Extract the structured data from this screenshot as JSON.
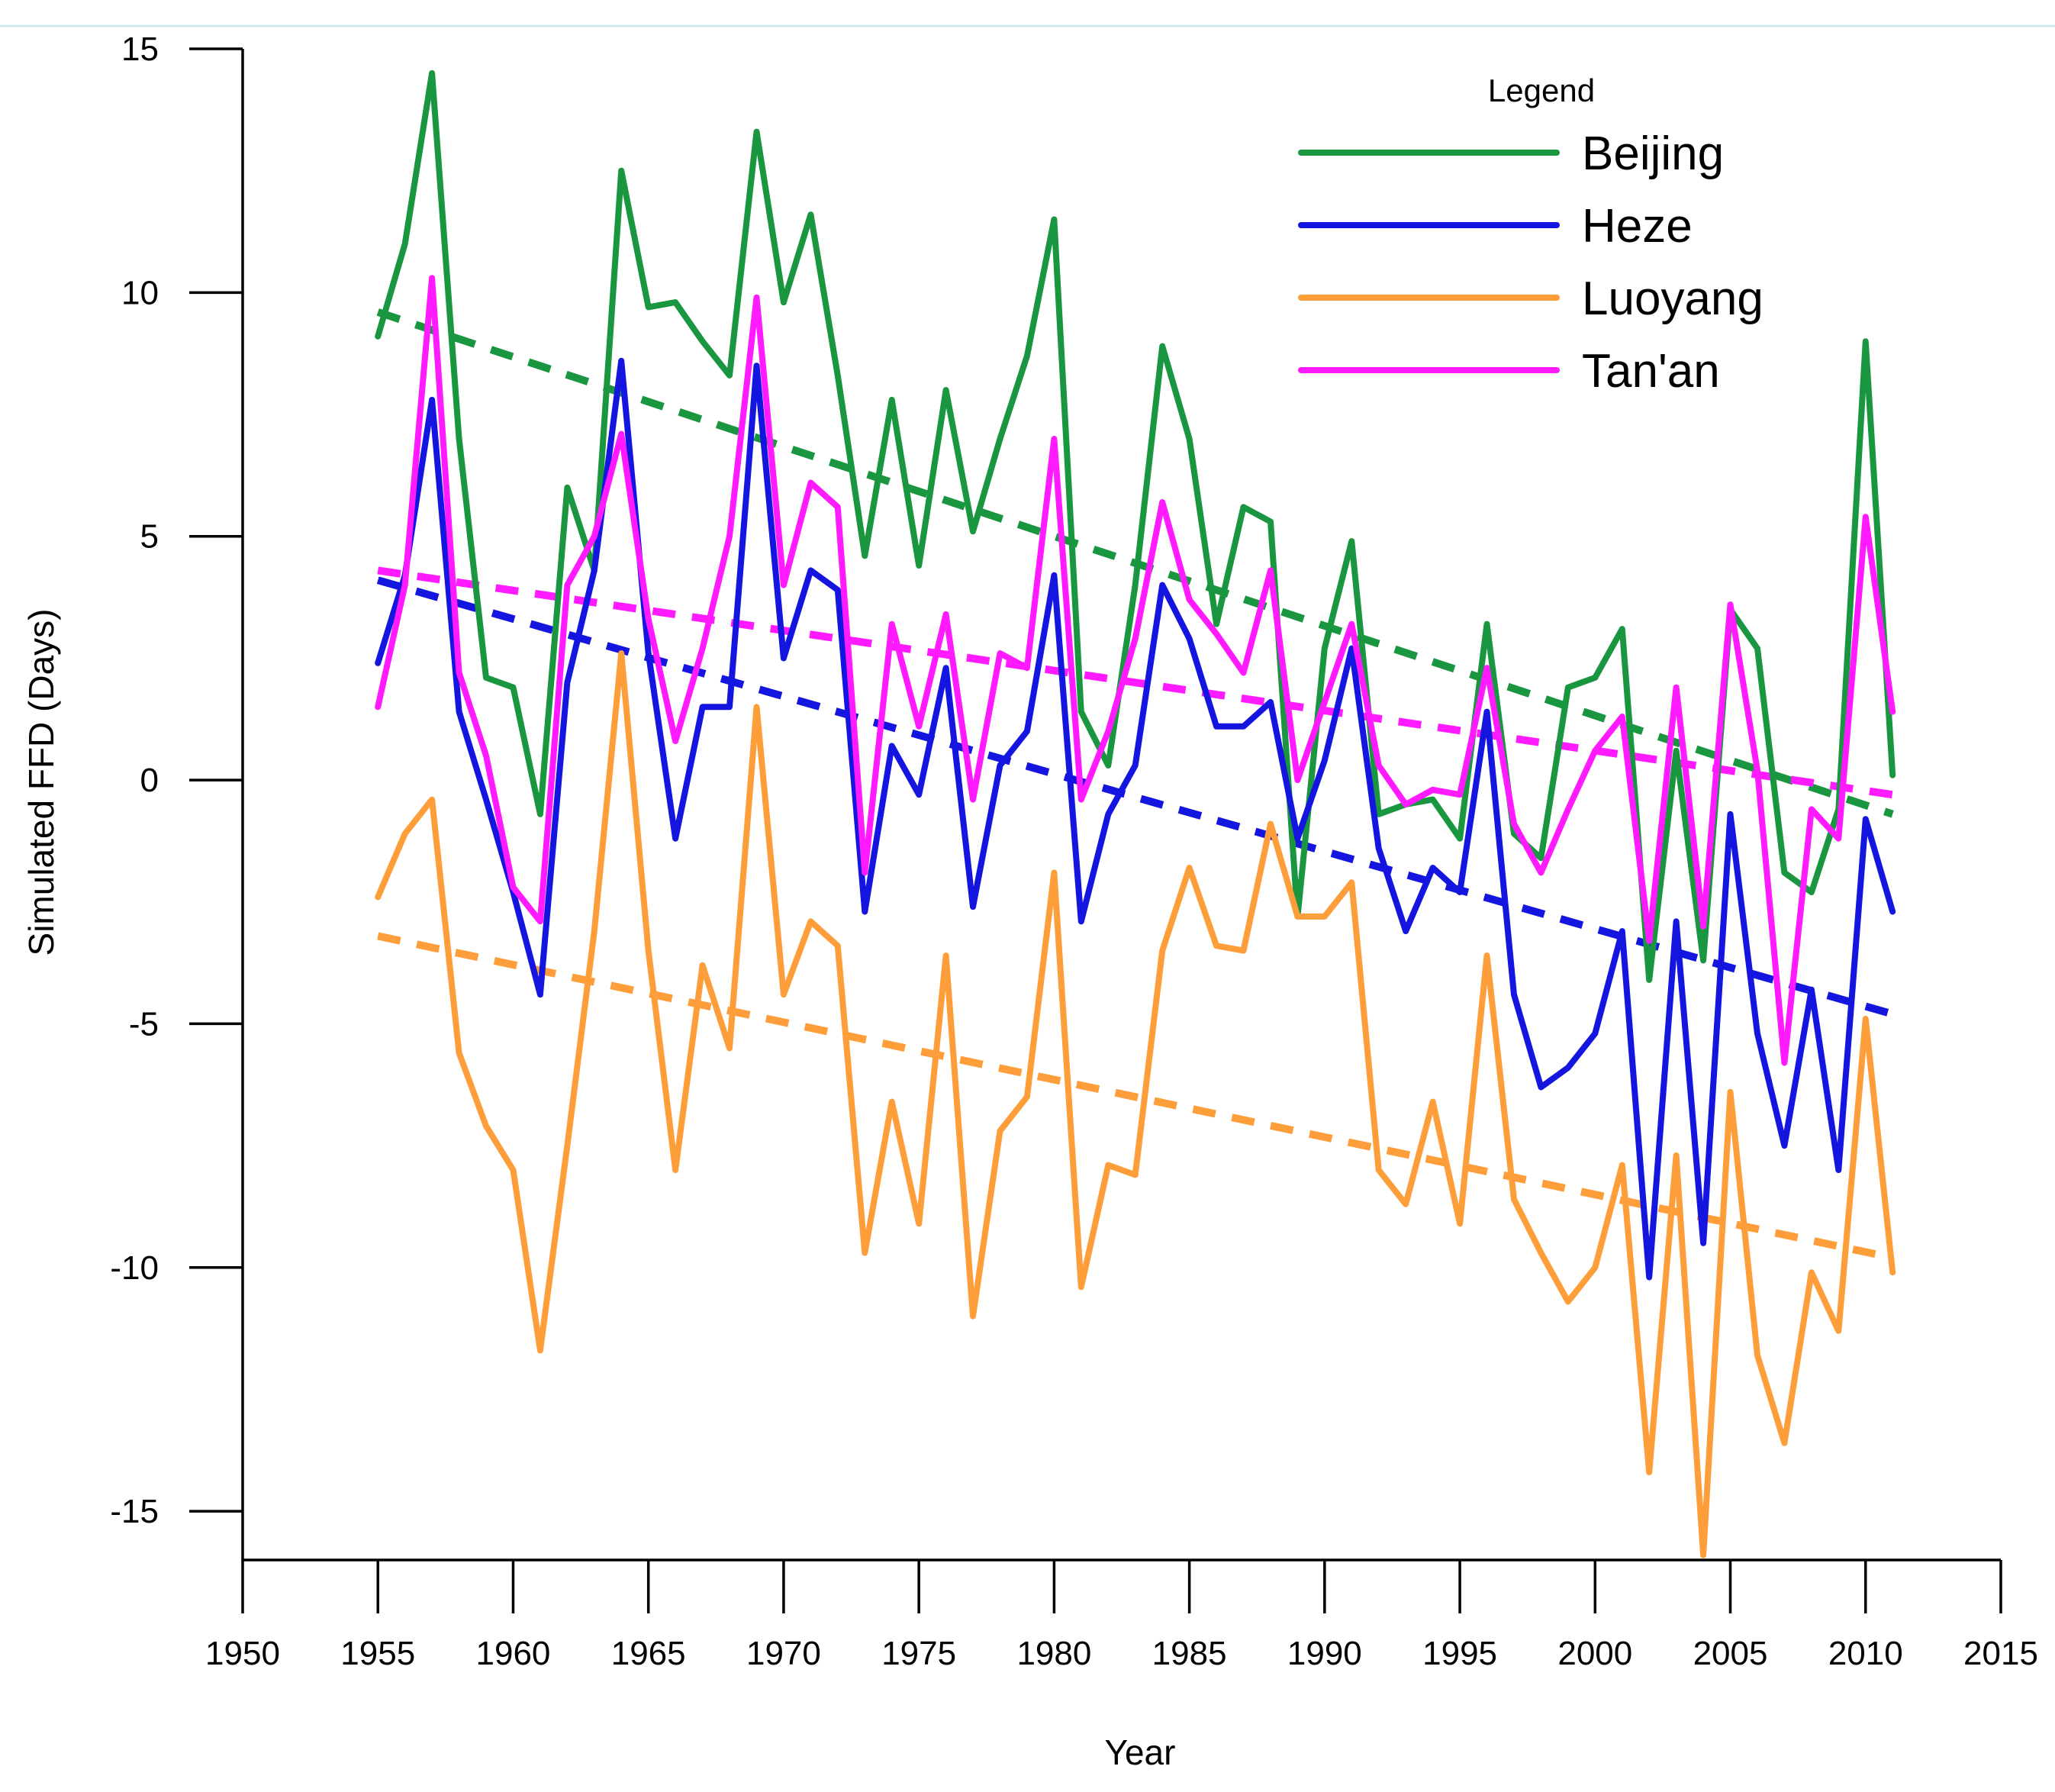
{
  "chart_data": {
    "type": "line",
    "title": "",
    "xlabel": "Year",
    "ylabel": "Simulated FFD (Days)",
    "xlim": [
      1950,
      2015
    ],
    "ylim": [
      -16,
      15
    ],
    "xticks": [
      1950,
      1955,
      1960,
      1965,
      1970,
      1975,
      1980,
      1985,
      1990,
      1995,
      2000,
      2005,
      2010,
      2015
    ],
    "yticks": [
      15,
      10,
      5,
      0,
      -5,
      -10,
      -15
    ],
    "legend": {
      "title": "Legend",
      "position": "top-right"
    },
    "x": [
      1955,
      1956,
      1957,
      1958,
      1959,
      1960,
      1961,
      1962,
      1963,
      1964,
      1965,
      1966,
      1967,
      1968,
      1969,
      1970,
      1971,
      1972,
      1973,
      1974,
      1975,
      1976,
      1977,
      1978,
      1979,
      1980,
      1981,
      1982,
      1983,
      1984,
      1985,
      1986,
      1987,
      1988,
      1989,
      1990,
      1991,
      1992,
      1993,
      1994,
      1995,
      1996,
      1997,
      1998,
      1999,
      2000,
      2001,
      2002,
      2003,
      2004,
      2005,
      2006,
      2007,
      2008,
      2009,
      2010,
      2011
    ],
    "series": [
      {
        "name": "Beijing",
        "color": "#1a9641",
        "values": [
          9.1,
          11.0,
          14.5,
          7.0,
          2.1,
          1.9,
          -0.7,
          6.0,
          4.3,
          12.5,
          9.7,
          9.8,
          9.0,
          8.3,
          13.3,
          9.8,
          11.6,
          8.3,
          4.6,
          7.8,
          4.4,
          8.0,
          5.1,
          7.0,
          8.7,
          11.5,
          1.4,
          0.3,
          4.0,
          8.9,
          7.0,
          3.2,
          5.6,
          5.3,
          -2.8,
          2.7,
          4.9,
          -0.7,
          -0.5,
          -0.4,
          -1.2,
          3.2,
          -1.1,
          -1.6,
          1.9,
          2.1,
          3.1,
          -4.1,
          0.6,
          -3.7,
          3.5,
          2.7,
          -1.9,
          -2.3,
          -0.6,
          9.0,
          0.1
        ]
      },
      {
        "name": "Heze",
        "color": "#1515e0",
        "values": [
          2.4,
          4.2,
          7.8,
          1.4,
          -0.4,
          -2.3,
          -4.4,
          2.0,
          4.3,
          8.6,
          2.6,
          -1.2,
          1.5,
          1.5,
          8.5,
          2.5,
          4.3,
          3.9,
          -2.7,
          0.7,
          -0.3,
          2.3,
          -2.6,
          0.3,
          1.0,
          4.2,
          -2.9,
          -0.7,
          0.3,
          4.0,
          2.9,
          1.1,
          1.1,
          1.6,
          -1.2,
          0.4,
          2.7,
          -1.4,
          -3.1,
          -1.8,
          -2.3,
          1.4,
          -4.4,
          -6.3,
          -5.9,
          -5.2,
          -3.1,
          -10.2,
          -2.9,
          -9.5,
          -0.7,
          -5.2,
          -7.5,
          -4.3,
          -8.0,
          -0.8,
          -2.7
        ]
      },
      {
        "name": "Luoyang",
        "color": "#fd9e3a",
        "values": [
          -2.4,
          -1.1,
          -0.4,
          -5.6,
          -7.1,
          -8.0,
          -11.7,
          -7.5,
          -3.1,
          2.6,
          -3.5,
          -8.0,
          -3.8,
          -5.5,
          1.5,
          -4.4,
          -2.9,
          -3.4,
          -9.7,
          -6.6,
          -9.1,
          -3.6,
          -11.0,
          -7.2,
          -6.5,
          -1.9,
          -10.4,
          -7.9,
          -8.1,
          -3.5,
          -1.8,
          -3.4,
          -3.5,
          -0.9,
          -2.8,
          -2.8,
          -2.1,
          -8.0,
          -8.7,
          -6.6,
          -9.1,
          -3.6,
          -8.6,
          -9.7,
          -10.7,
          -10.0,
          -7.9,
          -14.2,
          -7.7,
          -15.9,
          -6.4,
          -11.8,
          -13.6,
          -10.1,
          -11.3,
          -4.9,
          -10.1
        ]
      },
      {
        "name": "Tan'an",
        "color": "#ff1aff",
        "values": [
          1.5,
          4.0,
          10.3,
          2.2,
          0.5,
          -2.2,
          -2.9,
          4.0,
          5.0,
          7.1,
          3.3,
          0.8,
          2.7,
          5.0,
          9.9,
          4.0,
          6.1,
          5.6,
          -1.9,
          3.2,
          1.1,
          3.4,
          -0.4,
          2.6,
          2.3,
          7.0,
          -0.4,
          1.0,
          2.9,
          5.7,
          3.7,
          3.0,
          2.2,
          4.3,
          0.0,
          1.6,
          3.2,
          0.3,
          -0.5,
          -0.2,
          -0.3,
          2.3,
          -0.9,
          -1.9,
          -0.6,
          0.6,
          1.3,
          -3.3,
          1.9,
          -3.0,
          3.6,
          0.2,
          -5.8,
          -0.6,
          -1.2,
          5.4,
          1.4
        ]
      }
    ],
    "trendlines": [
      {
        "name": "Beijing trend",
        "color": "#1a9641",
        "x": [
          1955,
          2011
        ],
        "y": [
          9.6,
          -0.7
        ]
      },
      {
        "name": "Heze trend",
        "color": "#1515e0",
        "x": [
          1955,
          2011
        ],
        "y": [
          4.1,
          -4.8
        ]
      },
      {
        "name": "Luoyang trend",
        "color": "#fd9e3a",
        "x": [
          1955,
          2011
        ],
        "y": [
          -3.2,
          -9.8
        ]
      },
      {
        "name": "Tan'an trend",
        "color": "#ff1aff",
        "x": [
          1955,
          2011
        ],
        "y": [
          4.3,
          -0.3
        ]
      }
    ]
  }
}
